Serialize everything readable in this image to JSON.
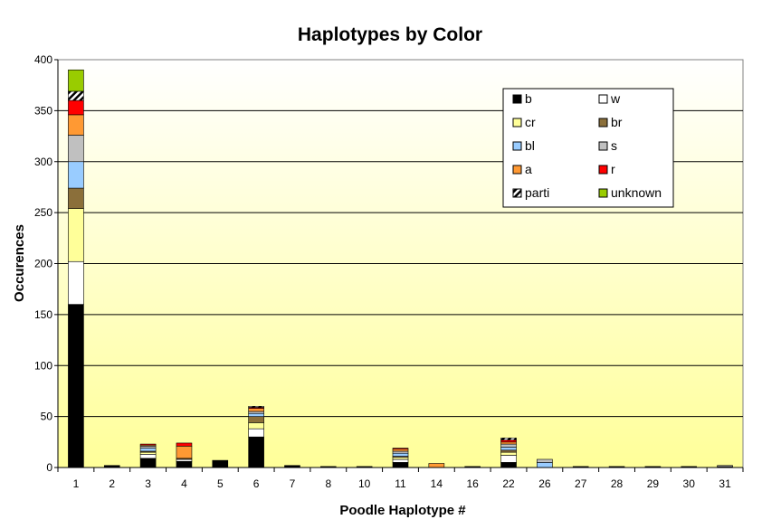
{
  "chart_data": {
    "type": "bar",
    "stacked": true,
    "title": "Haplotypes by Color",
    "xlabel": "Poodle Haplotype #",
    "ylabel": "Occurences",
    "ylim": [
      0,
      400
    ],
    "yticks": [
      0,
      50,
      100,
      150,
      200,
      250,
      300,
      350,
      400
    ],
    "grid": true,
    "legend_position": "top-right",
    "categories": [
      "1",
      "2",
      "3",
      "4",
      "5",
      "6",
      "7",
      "8",
      "10",
      "11",
      "14",
      "16",
      "22",
      "26",
      "27",
      "28",
      "29",
      "30",
      "31"
    ],
    "series": [
      {
        "name": "b",
        "color": "#000000",
        "pattern": "solid",
        "values": [
          160,
          2,
          9,
          6,
          7,
          30,
          2,
          1,
          1,
          5,
          0,
          1,
          5,
          0,
          1,
          1,
          1,
          1,
          1
        ]
      },
      {
        "name": "w",
        "color": "#ffffff",
        "pattern": "solid",
        "values": [
          42,
          0,
          4,
          2,
          0,
          8,
          0,
          0,
          0,
          3,
          0,
          0,
          7,
          0,
          0,
          0,
          0,
          0,
          1
        ]
      },
      {
        "name": "cr",
        "color": "#ffff99",
        "pattern": "solid",
        "values": [
          52,
          0,
          2,
          0,
          0,
          6,
          0,
          0,
          0,
          2,
          0,
          0,
          3,
          0,
          0,
          0,
          0,
          0,
          0
        ]
      },
      {
        "name": "br",
        "color": "#8b6f3a",
        "pattern": "solid",
        "values": [
          20,
          0,
          1,
          1,
          0,
          6,
          0,
          0,
          0,
          1,
          0,
          0,
          2,
          0,
          0,
          0,
          0,
          0,
          0
        ]
      },
      {
        "name": "bl",
        "color": "#99ccff",
        "pattern": "solid",
        "values": [
          26,
          0,
          3,
          0,
          0,
          3,
          0,
          0,
          0,
          3,
          0,
          0,
          3,
          5,
          0,
          0,
          0,
          0,
          0
        ]
      },
      {
        "name": "s",
        "color": "#c0c0c0",
        "pattern": "solid",
        "values": [
          26,
          0,
          2,
          0,
          0,
          2,
          0,
          0,
          0,
          2,
          0,
          0,
          3,
          3,
          0,
          0,
          0,
          0,
          0
        ]
      },
      {
        "name": "a",
        "color": "#ff9933",
        "pattern": "solid",
        "values": [
          20,
          0,
          1,
          12,
          0,
          3,
          0,
          0,
          0,
          2,
          4,
          0,
          2,
          0,
          0,
          0,
          0,
          0,
          0
        ]
      },
      {
        "name": "r",
        "color": "#ff0000",
        "pattern": "solid",
        "values": [
          14,
          0,
          1,
          3,
          0,
          1,
          0,
          0,
          0,
          1,
          0,
          0,
          2,
          0,
          0,
          0,
          0,
          0,
          0
        ]
      },
      {
        "name": "parti",
        "color": "#000000",
        "pattern": "hatch",
        "values": [
          9,
          0,
          0,
          0,
          0,
          1,
          0,
          0,
          0,
          0,
          0,
          0,
          2,
          0,
          0,
          0,
          0,
          0,
          0
        ]
      },
      {
        "name": "unknown",
        "color": "#99cc00",
        "pattern": "solid",
        "values": [
          21,
          0,
          0,
          0,
          0,
          0,
          0,
          0,
          0,
          0,
          0,
          0,
          0,
          0,
          0,
          0,
          0,
          0,
          0
        ]
      }
    ]
  }
}
